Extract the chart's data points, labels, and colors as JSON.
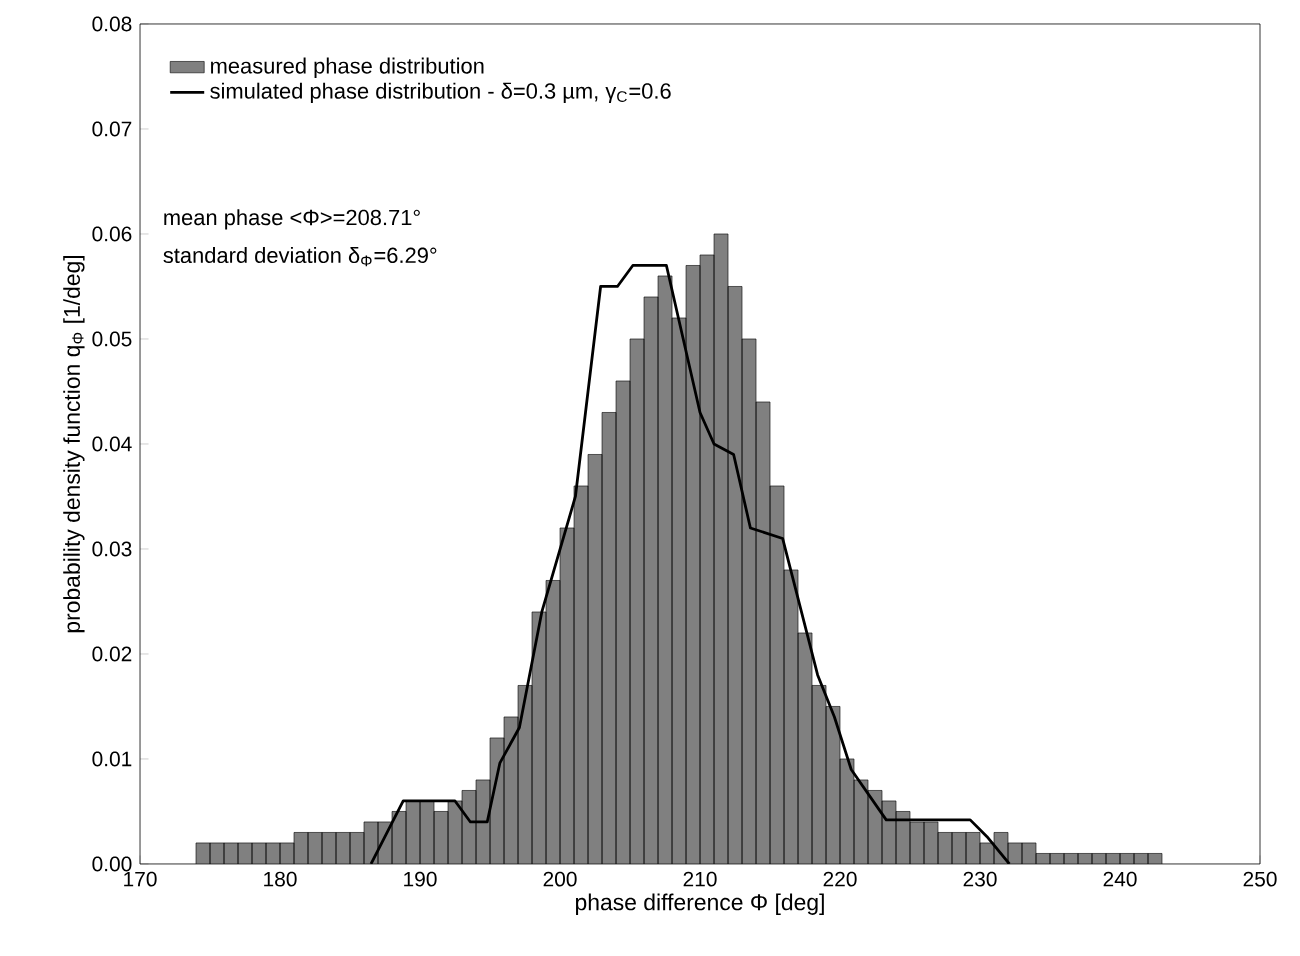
{
  "chart_data": {
    "type": "histogram",
    "xlabel": "phase difference Φ [deg]",
    "ylabel": "probability density function q$_{Φ}$ [1/deg]",
    "annotations": [
      "mean phase <Φ>=208.71°",
      "standard deviation δ$_{Φ}$=6.29°"
    ],
    "bins": [
      174,
      175,
      176,
      177,
      178,
      179,
      180,
      181,
      182,
      183,
      184,
      185,
      186,
      187,
      188,
      189,
      190,
      191,
      192,
      193,
      194,
      195,
      196,
      197,
      198,
      199,
      200,
      201,
      202,
      203,
      204,
      205,
      206,
      207,
      208,
      209,
      210,
      211,
      212,
      213,
      214,
      215,
      216,
      217,
      218,
      219,
      220,
      221,
      222,
      223,
      224,
      225,
      226,
      227,
      228,
      229,
      230,
      231,
      232,
      233,
      234,
      235,
      236,
      237,
      238,
      239,
      240,
      241,
      242,
      243
    ],
    "series": [
      {
        "name": "measured phase distribution",
        "color": "#808080",
        "values": [
          0.002,
          0.002,
          0.002,
          0.002,
          0.002,
          0.002,
          0.002,
          0.003,
          0.003,
          0.003,
          0.003,
          0.003,
          0.004,
          0.004,
          0.005,
          0.006,
          0.006,
          0.005,
          0.006,
          0.007,
          0.008,
          0.012,
          0.014,
          0.017,
          0.024,
          0.027,
          0.032,
          0.036,
          0.039,
          0.043,
          0.046,
          0.05,
          0.054,
          0.056,
          0.052,
          0.057,
          0.058,
          0.06,
          0.055,
          0.05,
          0.044,
          0.036,
          0.028,
          0.022,
          0.017,
          0.015,
          0.01,
          0.008,
          0.007,
          0.006,
          0.005,
          0.004,
          0.004,
          0.003,
          0.003,
          0.003,
          0.002,
          0.003,
          0.002,
          0.002,
          0.001,
          0.001,
          0.001,
          0.001,
          0.001,
          0.001,
          0.001,
          0.001,
          0.001
        ]
      },
      {
        "name": "simulated phase distribution - δ=0.3 µm, γ$_{C}$=0.6",
        "type": "line",
        "color": "#000000",
        "x": [
          186.5,
          188.8,
          192.5,
          193.6,
          194.8,
          195.7,
          197.1,
          198.7,
          201.1,
          202.9,
          204.1,
          205.2,
          207.6,
          210.0,
          211.0,
          212.4,
          213.6,
          215.9,
          218.4,
          219.6,
          220.8,
          223.3,
          229.3,
          230.5,
          232.1
        ],
        "values": [
          0,
          0.006,
          0.006,
          0.004,
          0.004,
          0.0096,
          0.013,
          0.024,
          0.035,
          0.055,
          0.055,
          0.057,
          0.057,
          0.043,
          0.04,
          0.039,
          0.032,
          0.031,
          0.018,
          0.014,
          0.009,
          0.0042,
          0.0042,
          0.0026,
          0
        ]
      }
    ],
    "xlim": [
      170,
      250
    ],
    "xticks": [
      170,
      180,
      190,
      200,
      210,
      220,
      230,
      240,
      250
    ],
    "ylim": [
      0,
      0.08
    ],
    "yticks": [
      {
        "value": 0,
        "label": "0.00"
      },
      {
        "value": 0.01,
        "label": "0.01"
      },
      {
        "value": 0.02,
        "label": "0.02"
      },
      {
        "value": 0.03,
        "label": "0.03"
      },
      {
        "value": 0.04,
        "label": "0.04"
      },
      {
        "value": 0.05,
        "label": "0.05"
      },
      {
        "value": 0.06,
        "label": "0.06"
      },
      {
        "value": 0.07,
        "label": "0.07"
      },
      {
        "value": 0.08,
        "label": "0.08"
      }
    ],
    "legend": "top left",
    "grid": false
  }
}
